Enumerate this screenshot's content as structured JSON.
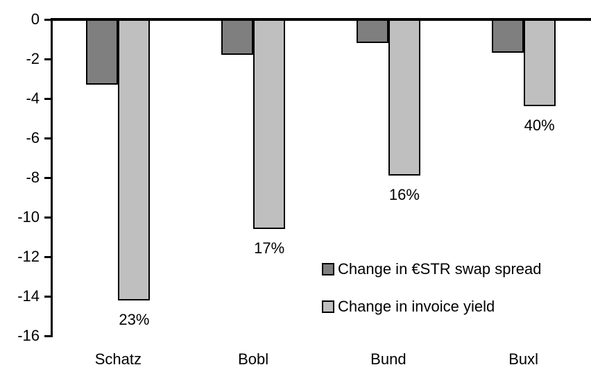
{
  "chart_data": {
    "type": "bar",
    "title": "",
    "xlabel": "",
    "ylabel": "",
    "categories": [
      "Schatz",
      "Bobl",
      "Bund",
      "Buxl"
    ],
    "series": [
      {
        "name": "Change in €STR swap spread",
        "color": "#7f7f7f",
        "values": [
          -3.3,
          -1.8,
          -1.2,
          -1.7
        ]
      },
      {
        "name": "Change in invoice yield",
        "color": "#bfbfbf",
        "values": [
          -14.2,
          -10.6,
          -7.9,
          -4.4
        ]
      }
    ],
    "bar_labels": {
      "series": "Change in invoice yield",
      "values": [
        "23%",
        "17%",
        "16%",
        "40%"
      ]
    },
    "yticks": [
      0,
      -2,
      -4,
      -6,
      -8,
      -10,
      -12,
      -14,
      -16
    ],
    "ylim": [
      -16,
      0
    ],
    "grid": false,
    "legend_position": "inside-center-right",
    "axis_color": "#000000",
    "background_color": "#ffffff"
  }
}
